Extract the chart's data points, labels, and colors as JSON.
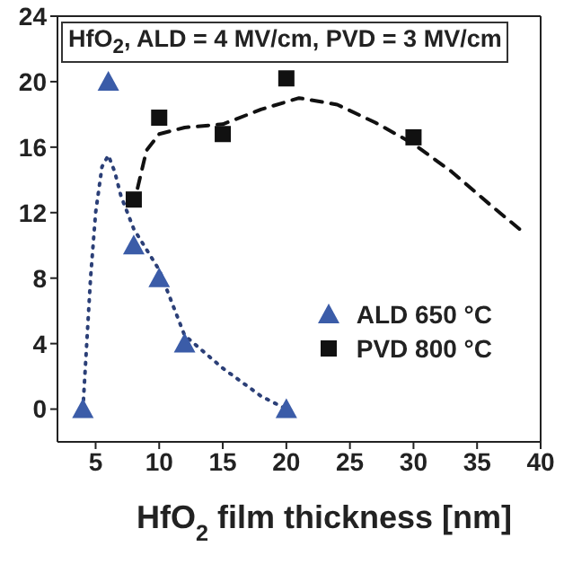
{
  "chart_data": {
    "type": "scatter",
    "title": "HfO$_{2}$, ALD = 4 MV/cm, PVD = 3 MV/cm",
    "xlabel": "HfO$_{2}$ film thickness [nm]",
    "xlim": [
      2,
      40
    ],
    "xticks": [
      5,
      10,
      15,
      20,
      25,
      30,
      35,
      40
    ],
    "ylim": [
      -2,
      24
    ],
    "yticks": [
      0,
      4,
      8,
      12,
      16,
      20,
      24
    ],
    "legend": "right",
    "series": [
      {
        "name": "ALD 650 °C",
        "marker": "triangle",
        "color": "#3b5ca8",
        "x": [
          4,
          6,
          8,
          10,
          12,
          20
        ],
        "values": [
          0,
          20,
          10,
          8,
          4,
          0
        ]
      },
      {
        "name": "PVD 800 °C",
        "marker": "square",
        "color": "#111111",
        "x": [
          8,
          10,
          15,
          20,
          30
        ],
        "values": [
          12.8,
          17.8,
          16.8,
          20.2,
          16.6
        ]
      },
      {
        "type": "line",
        "line_style": "dotted",
        "marker": "none",
        "color": "#2b3f77",
        "x": [
          4,
          4.3,
          4.6,
          5,
          5.5,
          6,
          6.5,
          7,
          8,
          10,
          12,
          15,
          18,
          20
        ],
        "values": [
          0,
          4,
          8,
          12,
          14.8,
          15.5,
          14.5,
          13,
          11,
          8.5,
          4.5,
          2.5,
          0.8,
          0
        ]
      },
      {
        "type": "line",
        "line_style": "dashed",
        "marker": "none",
        "color": "#111111",
        "x": [
          8.3,
          9,
          10,
          12,
          15,
          18,
          21,
          24,
          27,
          30,
          33,
          36,
          38.8
        ],
        "values": [
          13.5,
          15.8,
          16.8,
          17.2,
          17.4,
          18.3,
          19,
          18.6,
          17.5,
          16.2,
          14.5,
          12.5,
          10.7
        ]
      }
    ]
  }
}
